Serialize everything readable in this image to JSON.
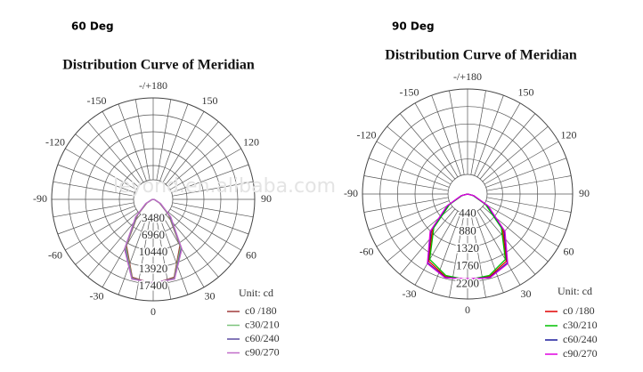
{
  "chart_data": [
    {
      "type": "polar",
      "label": "60 Deg",
      "title": "Distribution Curve of Meridian",
      "unit": "Unit: cd",
      "watermark": "leyond.en.alibaba.com",
      "angles": [
        -90,
        -75,
        -60,
        -45,
        -30,
        -15,
        0,
        15,
        30,
        45,
        60,
        75,
        90
      ],
      "thetaticks": [
        {
          "value": 180,
          "label": "-/+180"
        },
        -150,
        150,
        -120,
        120,
        -90,
        90,
        -60,
        60,
        -30,
        30,
        0
      ],
      "rlim": [
        0,
        20880
      ],
      "rticks": [
        3480,
        6960,
        10440,
        13920,
        17400
      ],
      "series": [
        {
          "name": "c0 /180",
          "color": "#a03a3a",
          "values": [
            0,
            300,
            1500,
            4500,
            11000,
            16600,
            17400,
            16600,
            11000,
            4500,
            1500,
            300,
            0
          ]
        },
        {
          "name": "c30/210",
          "color": "#7cc47c",
          "values": [
            0,
            300,
            1600,
            4700,
            11300,
            16800,
            17300,
            16800,
            11300,
            4700,
            1600,
            300,
            0
          ]
        },
        {
          "name": "c60/240",
          "color": "#5a4aa0",
          "values": [
            0,
            350,
            1700,
            4900,
            11600,
            16900,
            17200,
            16900,
            11600,
            4900,
            1700,
            350,
            0
          ]
        },
        {
          "name": "c90/270",
          "color": "#c06cc8",
          "values": [
            0,
            350,
            1800,
            5100,
            11800,
            17000,
            17100,
            17000,
            11800,
            5100,
            1800,
            350,
            0
          ]
        }
      ]
    },
    {
      "type": "polar",
      "label": "90 Deg",
      "title": "Distribution Curve of Meridian",
      "unit": "Unit: cd",
      "angles": [
        -90,
        -75,
        -60,
        -45,
        -30,
        -15,
        0,
        15,
        30,
        45,
        60,
        75,
        90
      ],
      "thetaticks": [
        {
          "value": 180,
          "label": "-/+180"
        },
        -150,
        150,
        -120,
        120,
        -90,
        90,
        -60,
        60,
        -30,
        30,
        0
      ],
      "rlim": [
        0,
        2640
      ],
      "rticks": [
        440,
        880,
        1320,
        1760,
        2200
      ],
      "series": [
        {
          "name": "c0 /180",
          "color": "#e00000",
          "values": [
            0,
            150,
            550,
            1250,
            1950,
            2150,
            2150,
            2150,
            1950,
            1250,
            550,
            150,
            0
          ]
        },
        {
          "name": "c30/210",
          "color": "#00c000",
          "values": [
            0,
            140,
            520,
            1200,
            1900,
            2120,
            2160,
            2120,
            1900,
            1200,
            520,
            140,
            0
          ]
        },
        {
          "name": "c60/240",
          "color": "#1a1a9a",
          "values": [
            0,
            160,
            580,
            1300,
            2000,
            2170,
            2140,
            2170,
            2000,
            1300,
            580,
            160,
            0
          ]
        },
        {
          "name": "c90/270",
          "color": "#e000e0",
          "values": [
            0,
            170,
            600,
            1330,
            2020,
            2180,
            2130,
            2180,
            2020,
            1330,
            600,
            170,
            0
          ]
        }
      ]
    }
  ]
}
